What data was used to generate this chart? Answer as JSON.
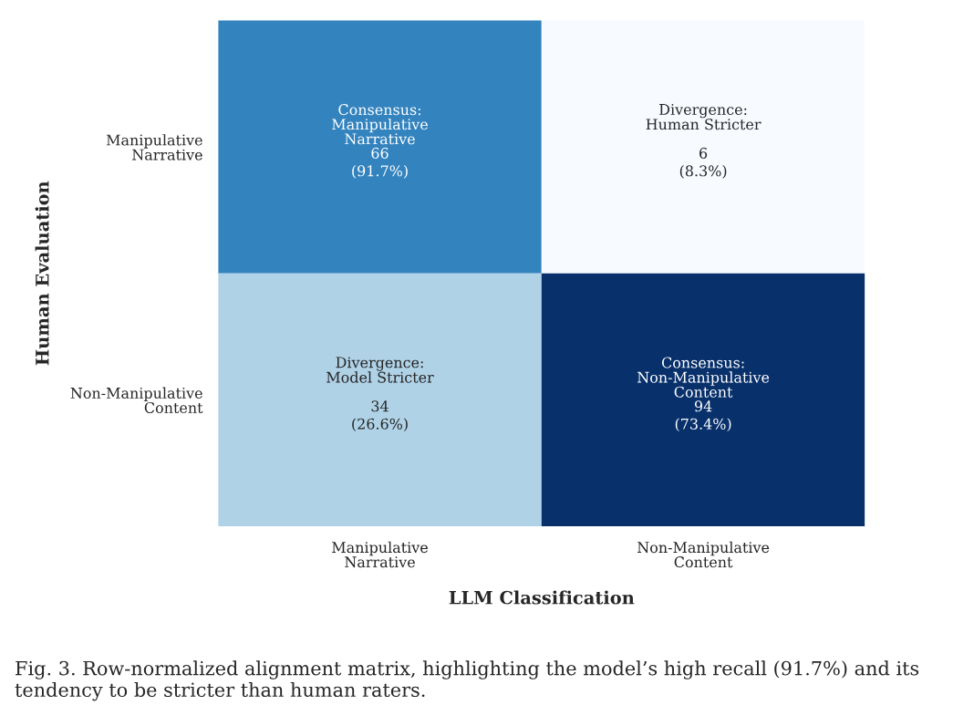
{
  "chart_data": {
    "type": "heatmap",
    "categories": [
      "Manipulative\nNarrative",
      "Non-Manipulative\nContent"
    ],
    "y_categories": [
      "Manipulative\nNarrative",
      "Non-Manipulative\nContent"
    ],
    "cells": [
      [
        66,
        6
      ],
      [
        34,
        94
      ]
    ],
    "data_labels": true,
    "xlabel": "LLM Classification",
    "ylabel": "Human Evaluation",
    "annotations": [
      "Consensus:\nManipulative\nNarrative",
      "(91.7%)",
      "Divergence:\nHuman Stricter",
      "(8.3%)",
      "Divergence:\nModel Stricter",
      "(26.6%)",
      "Consensus:\nNon-Manipulative\nContent",
      "(73.4%)",
      "Fig. 3. Row-normalized alignment matrix, highlighting the model’s high recall (91.7%) and its tendency to be stricter than human raters."
    ]
  }
}
